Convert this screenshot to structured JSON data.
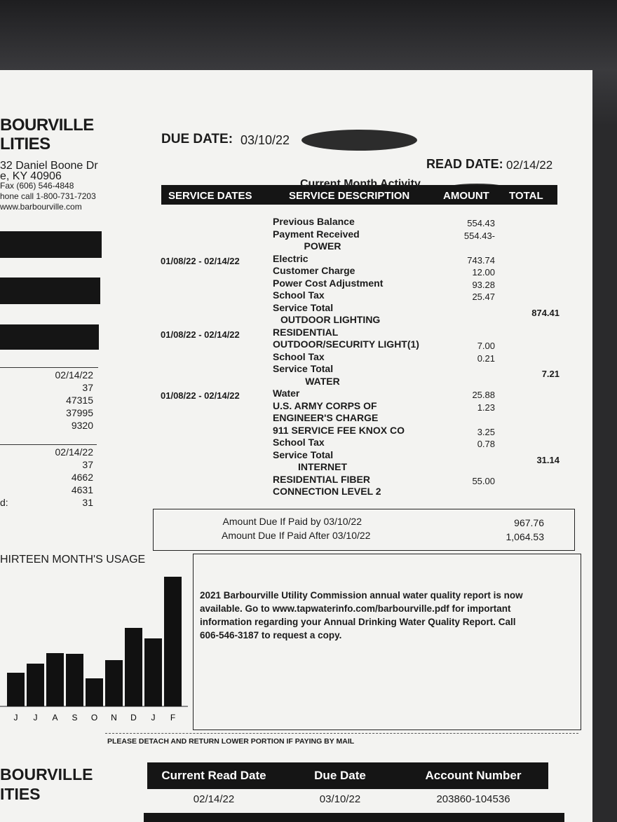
{
  "header": {
    "company": [
      "BOURVILLE",
      "LITIES"
    ],
    "address": [
      "32 Daniel Boone Dr",
      "e, KY  40906",
      "Fax (606) 546-4848",
      "hone call 1-800-731-7203",
      "www.barbourville.com"
    ],
    "due_label": "DUE DATE:",
    "due_date": "03/10/22",
    "read_label": "READ DATE:",
    "read_date": "02/14/22"
  },
  "readings": {
    "group1": [
      "02/14/22",
      "37",
      "47315",
      "37995",
      "9320"
    ],
    "group2": [
      "02/14/22",
      "37",
      "4662",
      "4631",
      "31"
    ],
    "group2_label": "d:"
  },
  "activity": {
    "title": "Current Month Activity",
    "columns": [
      "SERVICE DATES",
      "SERVICE DESCRIPTION",
      "AMOUNT",
      "TOTAL"
    ],
    "rows": [
      {
        "description": "Previous Balance",
        "amount": "554.43"
      },
      {
        "description": "Payment Received",
        "amount": "554.43-"
      },
      {
        "heading": "POWER"
      },
      {
        "dates": "01/08/22 - 02/14/22",
        "description": "Electric",
        "amount": "743.74"
      },
      {
        "description": "Customer Charge",
        "amount": "12.00"
      },
      {
        "description": "Power Cost Adjustment",
        "amount": "93.28"
      },
      {
        "description": "School Tax",
        "amount": "25.47"
      },
      {
        "description": "Service Total",
        "total": "874.41"
      },
      {
        "heading": "OUTDOOR LIGHTING"
      },
      {
        "dates": "01/08/22 - 02/14/22",
        "description": "RESIDENTIAL"
      },
      {
        "description": "OUTDOOR/SECURITY LIGHT(1)",
        "amount": "7.00"
      },
      {
        "description": "School Tax",
        "amount": "0.21"
      },
      {
        "description": "Service Total",
        "total": "7.21"
      },
      {
        "heading": "WATER"
      },
      {
        "dates": "01/08/22 - 02/14/22",
        "description": "Water",
        "amount": "25.88"
      },
      {
        "description": "U.S. ARMY CORPS OF",
        "amount": "1.23"
      },
      {
        "description": "ENGINEER'S CHARGE"
      },
      {
        "description": "911 SERVICE FEE KNOX CO",
        "amount": "3.25"
      },
      {
        "description": "School Tax",
        "amount": "0.78"
      },
      {
        "description": "Service Total",
        "total": "31.14"
      },
      {
        "heading": "INTERNET"
      },
      {
        "description": "RESIDENTIAL FIBER",
        "amount": "55.00"
      },
      {
        "description": "CONNECTION LEVEL 2"
      }
    ]
  },
  "amount_due": [
    {
      "label": "Amount Due If Paid by 03/10/22",
      "value": "967.76"
    },
    {
      "label": "Amount Due If Paid After 03/10/22",
      "value": "1,064.53"
    }
  ],
  "usage": {
    "title": "HIRTEEN MONTH'S USAGE",
    "categories": [
      "J",
      "J",
      "A",
      "S",
      "O",
      "N",
      "D",
      "J",
      "F"
    ],
    "values": [
      48,
      61,
      76,
      75,
      40,
      66,
      112,
      97,
      185
    ],
    "color": "#111111"
  },
  "notice": [
    "2021 Barbourville Utility Commission annual water quality report is now",
    "available.  Go to www.tapwaterinfo.com/barbourville.pdf for important",
    "information regarding your Annual Drinking Water Quality Report. Call",
    "606-546-3187 to request a copy."
  ],
  "detach_note": "PLEASE DETACH AND RETURN LOWER PORTION IF PAYING BY MAIL",
  "stub": {
    "company": [
      "BOURVILLE",
      "ITIES"
    ],
    "columns": [
      "Current Read Date",
      "Due Date",
      "Account Number"
    ],
    "values": [
      "02/14/22",
      "03/10/22",
      "203860-104536"
    ]
  }
}
